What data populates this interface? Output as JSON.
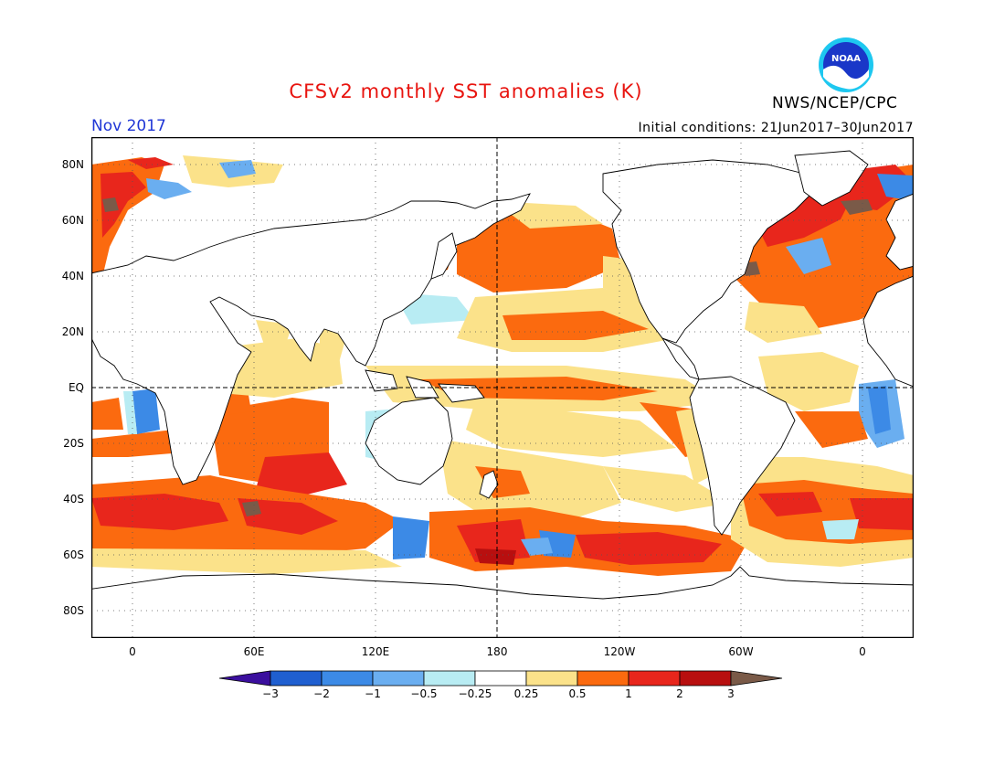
{
  "title": "CFSv2 monthly SST anomalies (K)",
  "valid_month": "Nov 2017",
  "initial_conditions": "Initial conditions: 21Jun2017–30Jun2017",
  "agency": "NWS/NCEP/CPC",
  "logo_icon": "noaa-logo",
  "logo_text": "NOAA",
  "lat_ticks": [
    "80N",
    "60N",
    "40N",
    "20N",
    "EQ",
    "20S",
    "40S",
    "60S",
    "80S"
  ],
  "lon_ticks": [
    "0",
    "60E",
    "120E",
    "180",
    "120W",
    "60W",
    "0"
  ],
  "colorbar": {
    "colors": [
      "#3b0f9e",
      "#1f5fd0",
      "#3c8ae6",
      "#6aaef0",
      "#b8ecf3",
      "#ffffff",
      "#fbe28a",
      "#fb6a0f",
      "#e8261c",
      "#b80f0f",
      "#7a5a48"
    ],
    "labels": [
      "−3",
      "−2",
      "−1",
      "−0.5",
      "−0.25",
      "0.25",
      "0.5",
      "1",
      "2",
      "3"
    ]
  },
  "colors": {
    "title": "#e8140f",
    "date": "#1f36d6",
    "land": "#ffffff",
    "coast": "#000000"
  }
}
